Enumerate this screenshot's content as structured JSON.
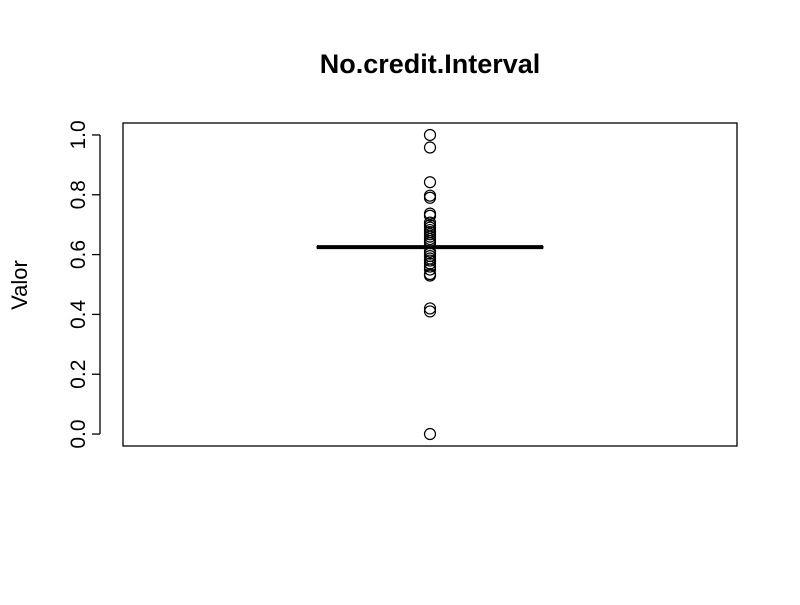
{
  "chart_data": {
    "type": "boxplot",
    "title": "No.credit.Interval",
    "xlabel": "",
    "ylabel": "Valor",
    "ylim": [
      -0.04,
      1.04
    ],
    "y_ticks": [
      0.0,
      0.2,
      0.4,
      0.6,
      0.8,
      1.0
    ],
    "y_tick_labels": [
      "0.0",
      "0.2",
      "0.4",
      "0.6",
      "0.8",
      "1.0"
    ],
    "grid": false,
    "legend": "none",
    "box": {
      "median": 0.625,
      "q1": 0.622,
      "q3": 0.627,
      "whisker_low": 0.62,
      "whisker_high": 0.63
    },
    "outliers": [
      1.0,
      0.958,
      0.842,
      0.797,
      0.79,
      0.737,
      0.73,
      0.707,
      0.698,
      0.69,
      0.682,
      0.675,
      0.668,
      0.66,
      0.652,
      0.645,
      0.638,
      0.61,
      0.603,
      0.595,
      0.587,
      0.58,
      0.57,
      0.56,
      0.55,
      0.535,
      0.53,
      0.42,
      0.41,
      0.0
    ],
    "colors": {
      "line": "#000000",
      "background": "#ffffff"
    }
  }
}
